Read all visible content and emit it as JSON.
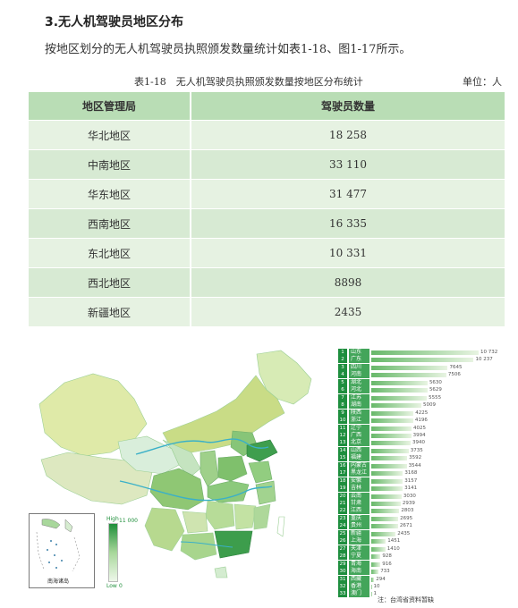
{
  "section_title": "3.无人机驾驶员地区分布",
  "intro": "按地区划分的无人机驾驶员执照颁发数量统计如表1-18、图1-17所示。",
  "table": {
    "caption": "表1-18　无人机驾驶员执照颁发数量按地区分布统计",
    "unit": "单位：人",
    "headers": [
      "地区管理局",
      "驾驶员数量"
    ],
    "rows": [
      {
        "region": "华北地区",
        "count": "18 258"
      },
      {
        "region": "中南地区",
        "count": "33 110"
      },
      {
        "region": "华东地区",
        "count": "31 477"
      },
      {
        "region": "西南地区",
        "count": "16 335"
      },
      {
        "region": "东北地区",
        "count": "10 331"
      },
      {
        "region": "西北地区",
        "count": "8898"
      },
      {
        "region": "新疆地区",
        "count": "2435"
      }
    ]
  },
  "map": {
    "inset_label": "南海诸岛",
    "scale": {
      "high_label": "High",
      "low_label": "Low",
      "max": "11 000",
      "min": "0"
    },
    "colors": {
      "dark": "#1f8f3b",
      "mid": "#a8d79b",
      "light": "#eef7ea",
      "olive": "#c9dc86"
    },
    "source_note": "注：台湾省资料暂缺"
  },
  "chart_data": {
    "type": "bar",
    "ranks": [
      "1",
      "2",
      "3",
      "4",
      "5",
      "6",
      "7",
      "8",
      "9",
      "10",
      "11",
      "12",
      "13",
      "14",
      "15",
      "16",
      "17",
      "18",
      "19",
      "20",
      "21",
      "22",
      "23",
      "24",
      "25",
      "26",
      "27",
      "28",
      "29",
      "30",
      "31",
      "32",
      "33"
    ],
    "categories": [
      "山东",
      "广东",
      "四川",
      "河南",
      "湖北",
      "河北",
      "江苏",
      "湖南",
      "陕西",
      "浙江",
      "辽宁",
      "广西",
      "北京",
      "山西",
      "福建",
      "内蒙古",
      "黑龙江",
      "安徽",
      "吉林",
      "云南",
      "甘肃",
      "江西",
      "重庆",
      "贵州",
      "新疆",
      "上海",
      "天津",
      "宁夏",
      "青海",
      "海南",
      "西藏",
      "香港",
      "澳门"
    ],
    "values": [
      10732,
      10237,
      7645,
      7506,
      5630,
      5629,
      5555,
      5009,
      4225,
      4196,
      4025,
      3994,
      3940,
      3735,
      3592,
      3544,
      3168,
      3157,
      3141,
      3030,
      2939,
      2803,
      2695,
      2671,
      2435,
      1451,
      1410,
      928,
      916,
      733,
      294,
      10,
      1
    ],
    "value_labels": [
      "10 732",
      "10 237",
      "7645",
      "7506",
      "5630",
      "5629",
      "5555",
      "5009",
      "4225",
      "4196",
      "4025",
      "3994",
      "3940",
      "3735",
      "3592",
      "3544",
      "3168",
      "3157",
      "3141",
      "3030",
      "2939",
      "2803",
      "2695",
      "2671",
      "2435",
      "1451",
      "1410",
      "928",
      "916",
      "733",
      "294",
      "10",
      "1"
    ]
  }
}
